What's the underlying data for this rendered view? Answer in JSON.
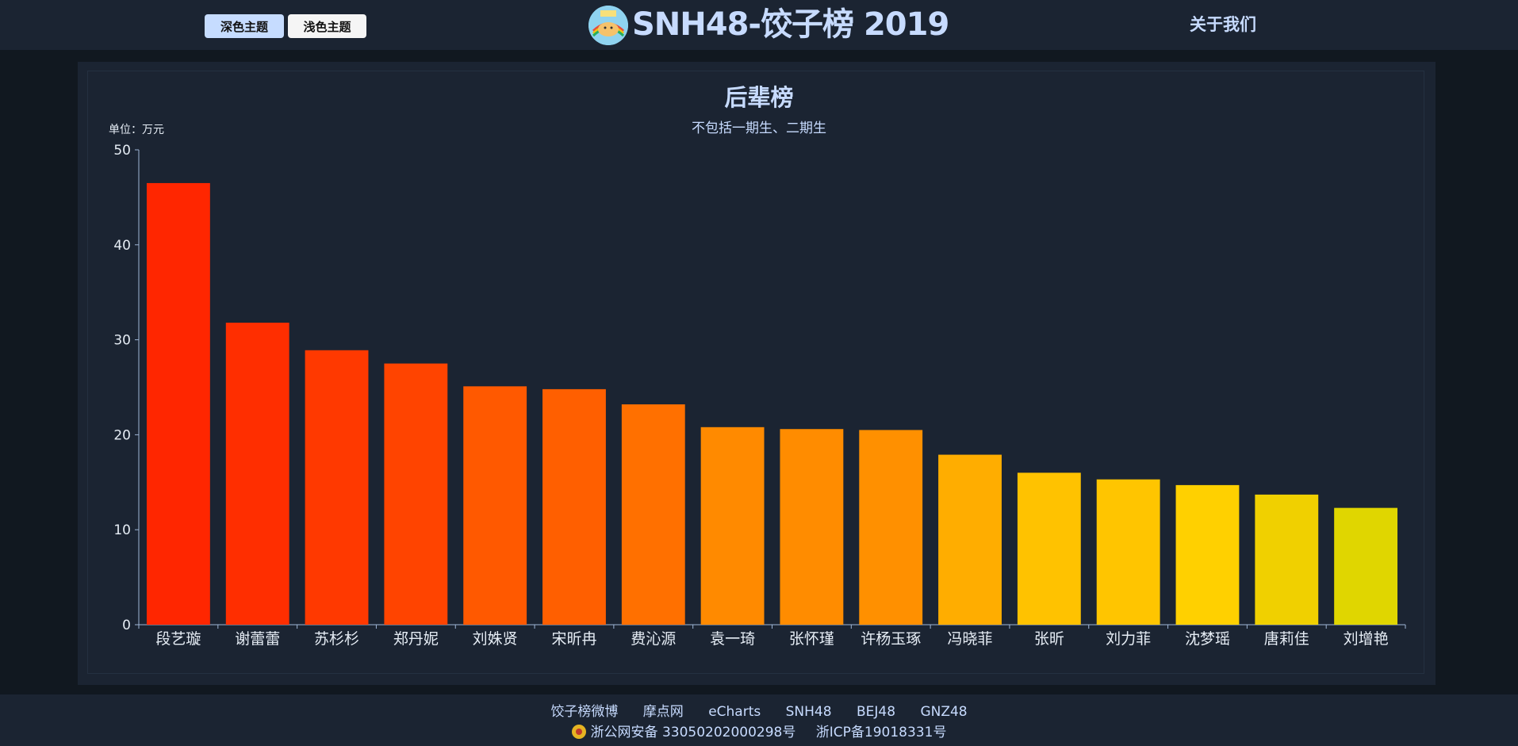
{
  "header": {
    "dark_theme_label": "深色主题",
    "light_theme_label": "浅色主题",
    "site_title": "SNH48-饺子榜 2019",
    "about_label": "关于我们"
  },
  "chart_data": {
    "type": "bar",
    "title": "后辈榜",
    "subtitle": "不包括一期生、二期生",
    "unit_label": "单位：万元",
    "categories": [
      "段艺璇",
      "谢蕾蕾",
      "苏杉杉",
      "郑丹妮",
      "刘姝贤",
      "宋昕冉",
      "费沁源",
      "袁一琦",
      "张怀瑾",
      "许杨玉琢",
      "冯晓菲",
      "张昕",
      "刘力菲",
      "沈梦瑶",
      "唐莉佳",
      "刘增艳"
    ],
    "values": [
      46.5,
      31.8,
      28.9,
      27.5,
      25.1,
      24.8,
      23.2,
      20.8,
      20.6,
      20.5,
      17.9,
      16.0,
      15.3,
      14.7,
      13.7,
      12.3
    ],
    "colors": [
      "#ff2600",
      "#ff2e00",
      "#ff3900",
      "#ff4400",
      "#ff5900",
      "#ff5f00",
      "#ff7000",
      "#ff8a00",
      "#ff8c00",
      "#ff9000",
      "#ffad00",
      "#ffc200",
      "#ffc500",
      "#ffd000",
      "#f0d000",
      "#e0d600"
    ],
    "ylim": [
      0,
      50
    ],
    "yticks": [
      0,
      10,
      20,
      30,
      40,
      50
    ]
  },
  "footer": {
    "links": [
      "饺子榜微博",
      "摩点网",
      "eCharts",
      "SNH48",
      "BEJ48",
      "GNZ48"
    ],
    "police_record": "浙公网安备 33050202000298号",
    "icp_record": "浙ICP备19018331号"
  },
  "icons": {
    "logo": "logo-icon",
    "police": "police-badge-icon"
  }
}
